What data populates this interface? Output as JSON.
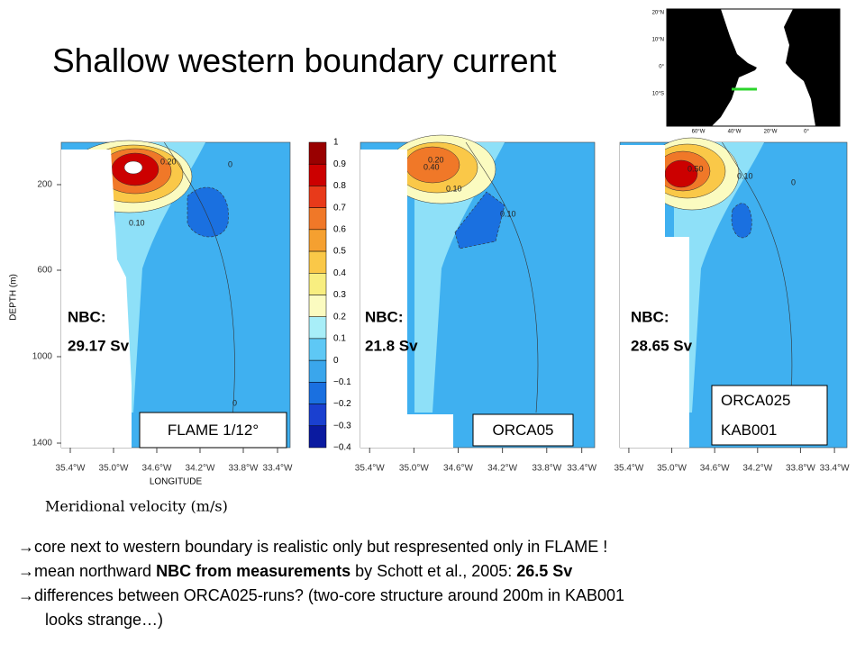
{
  "title": "Shallow western boundary current",
  "depth_axis": {
    "label": "DEPTH (m)",
    "ticks": [
      "200",
      "600",
      "1000",
      "1400"
    ]
  },
  "longitude_axis": {
    "label": "LONGITUDE",
    "ticks": [
      "35.4°W",
      "35.0°W",
      "34.6°W",
      "34.2°W",
      "33.8°W",
      "33.4°W"
    ]
  },
  "colorbar": {
    "labels": [
      "1",
      "0.9",
      "0.8",
      "0.7",
      "0.6",
      "0.5",
      "0.4",
      "0.3",
      "0.2",
      "0.1",
      "0",
      "−0.1",
      "−0.2",
      "−0.3",
      "−0.4"
    ],
    "caption": "Meridional velocity (m/s)"
  },
  "panels": [
    {
      "nbc": "NBC:",
      "transport": "29.17 Sv",
      "model": [
        "FLAME 1/12°"
      ],
      "contour_labels": [
        "0.20",
        "0.10",
        "0",
        "0"
      ]
    },
    {
      "nbc": "NBC:",
      "transport": "21.8 Sv",
      "model": [
        "ORCA05"
      ],
      "contour_labels": [
        "0.20",
        "0.40",
        "0.10",
        "0.10"
      ]
    },
    {
      "nbc": "NBC:",
      "transport": "28.65 Sv",
      "model": [
        "ORCA025",
        "KAB001"
      ],
      "contour_labels": [
        "0.50",
        "0.10",
        "0",
        "0"
      ]
    }
  ],
  "map": {
    "lat_labels": [
      "20°N",
      "10°N",
      "0°",
      "10°S"
    ],
    "lon_labels": [
      "60°W",
      "40°W",
      "20°W",
      "0°"
    ]
  },
  "bullets": [
    [
      {
        "text": "→core next to western boundary is realistic only but respresented only in FLAME !",
        "bold": false
      }
    ],
    [
      {
        "text": "→mean northward ",
        "bold": false
      },
      {
        "text": "NBC from measurements",
        "bold": true
      },
      {
        "text": " by Schott et al., 2005: ",
        "bold": false
      },
      {
        "text": "26.5 Sv",
        "bold": true
      }
    ],
    [
      {
        "text": "→differences between ORCA025-runs? (two-core structure around 200m in KAB001",
        "bold": false
      }
    ],
    [
      {
        "text": "looks strange…)",
        "bold": false
      }
    ]
  ]
}
